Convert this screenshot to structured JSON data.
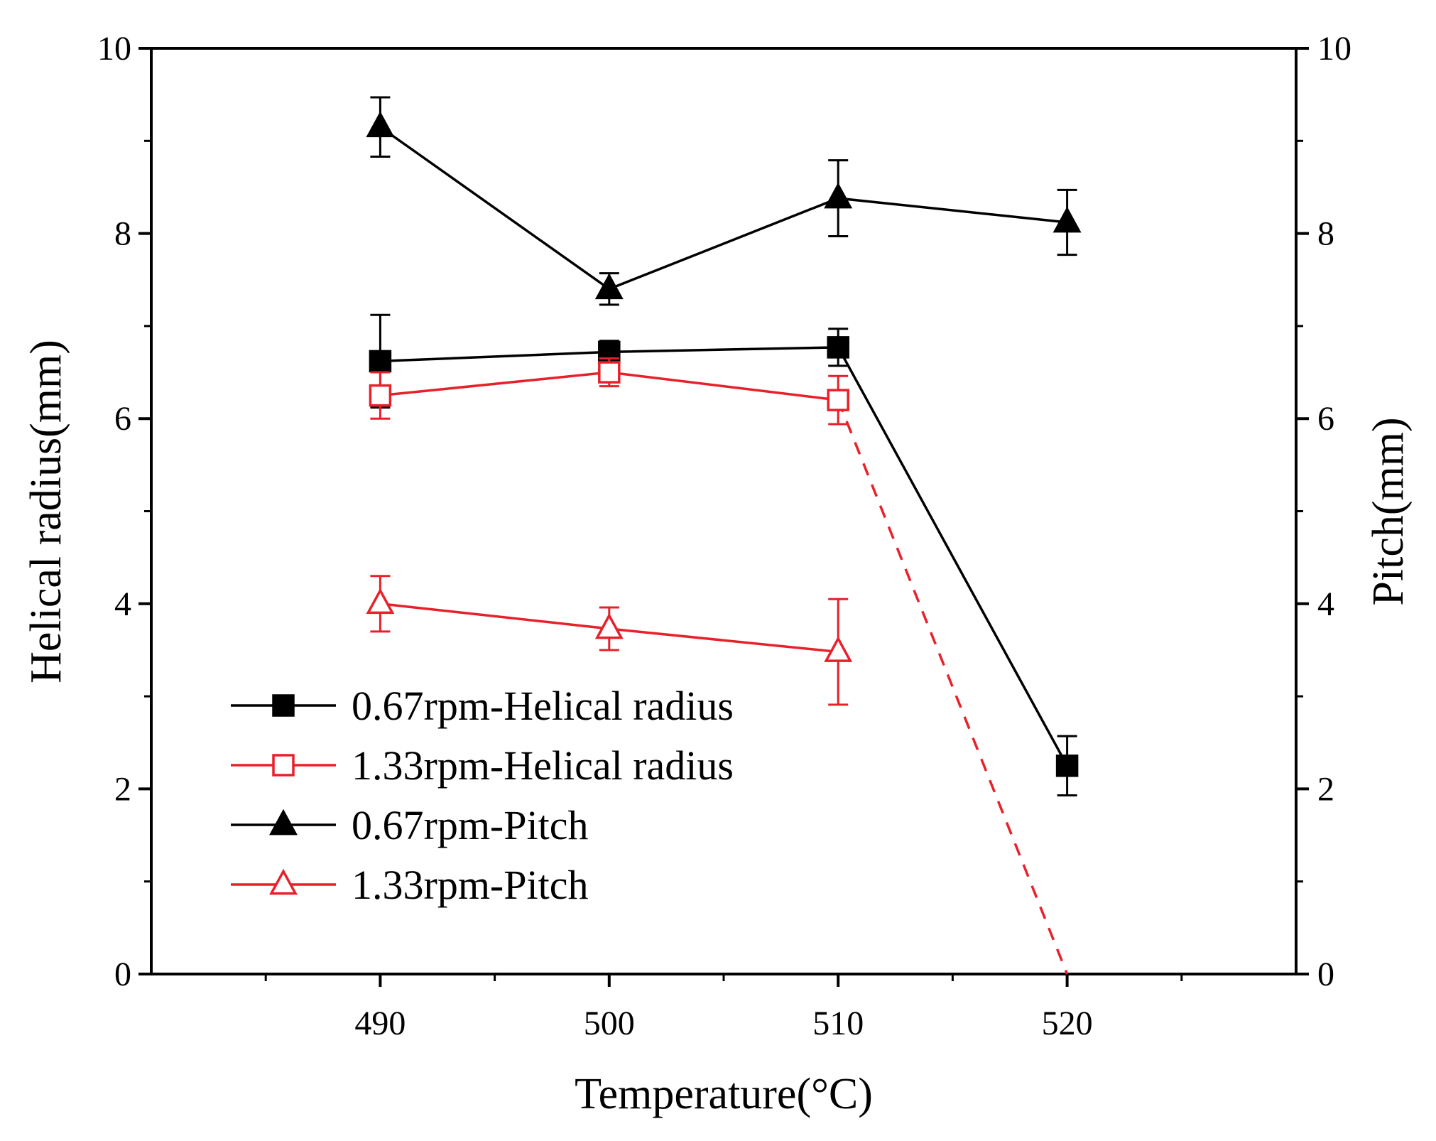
{
  "chart_data": {
    "type": "line",
    "title": "",
    "xlabel": "Temperature(°C)",
    "ylabel": "Helical radius(mm)",
    "y2label": "Pitch(mm)",
    "xlim": [
      480,
      530
    ],
    "ylim": [
      0,
      10
    ],
    "y2lim": [
      0,
      10
    ],
    "xticks": [
      "490",
      "500",
      "510",
      "520"
    ],
    "xtick_values": [
      490,
      500,
      510,
      520
    ],
    "yticks": [
      "0",
      "2",
      "4",
      "6",
      "8",
      "10"
    ],
    "ytick_values": [
      0,
      2,
      4,
      6,
      8,
      10
    ],
    "y2ticks": [
      "0",
      "2",
      "4",
      "6",
      "8",
      "10"
    ],
    "y2tick_values": [
      0,
      2,
      4,
      6,
      8,
      10
    ],
    "legend_position": "lower-left",
    "series": [
      {
        "name": "0.67rpm-Helical radius",
        "color": "#000000",
        "marker": "square-filled",
        "axis": "left",
        "x": [
          490,
          500,
          510,
          520
        ],
        "y": [
          6.62,
          6.72,
          6.77,
          2.25
        ],
        "err": [
          0.5,
          0.12,
          0.2,
          0.32
        ]
      },
      {
        "name": "1.33rpm-Helical radius",
        "color": "#e8202a",
        "marker": "square-open",
        "axis": "left",
        "x": [
          490,
          500,
          510
        ],
        "y": [
          6.25,
          6.5,
          6.2
        ],
        "err": [
          0.25,
          0.15,
          0.26
        ],
        "extension": {
          "style": "dashed",
          "x": [
            510,
            520
          ],
          "y": [
            6.2,
            0
          ]
        }
      },
      {
        "name": "0.67rpm-Pitch",
        "color": "#000000",
        "marker": "triangle-filled",
        "axis": "right",
        "x": [
          490,
          500,
          510,
          520
        ],
        "y": [
          9.15,
          7.4,
          8.38,
          8.12
        ],
        "err": [
          0.32,
          0.17,
          0.41,
          0.35
        ]
      },
      {
        "name": "1.33rpm-Pitch",
        "color": "#e8202a",
        "marker": "triangle-open",
        "axis": "right",
        "x": [
          490,
          500,
          510
        ],
        "y": [
          4.0,
          3.73,
          3.48
        ],
        "err": [
          0.3,
          0.23,
          0.57
        ]
      }
    ]
  }
}
